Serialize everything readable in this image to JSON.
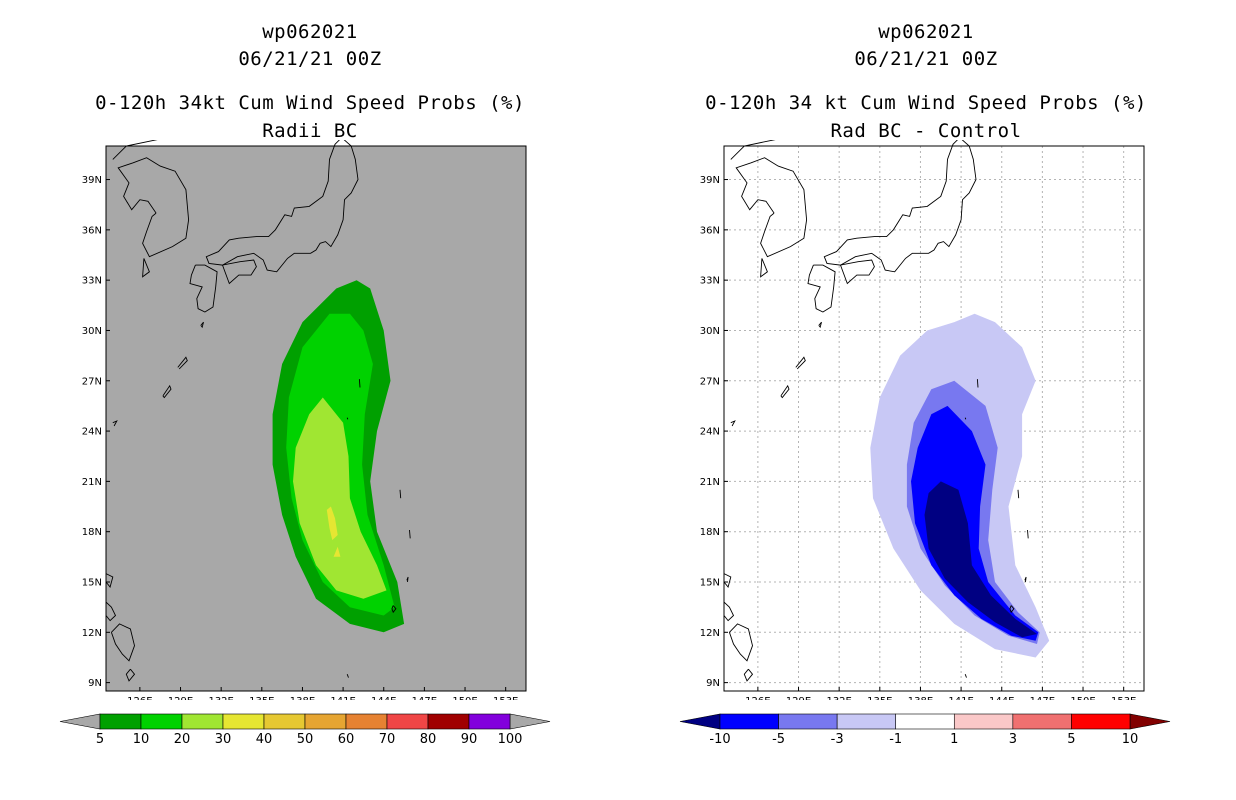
{
  "left": {
    "storm_id": "wp062021",
    "datetime": "06/21/21 00Z",
    "title": "0-120h 34kt Cum Wind Speed Probs (%)",
    "subtitle": "Radii BC",
    "background": "#a8a8a8",
    "colorbar": {
      "labels": [
        "5",
        "10",
        "20",
        "30",
        "40",
        "50",
        "60",
        "70",
        "80",
        "90",
        "100"
      ],
      "colors": [
        "#00a000",
        "#00d200",
        "#a0e632",
        "#e6e632",
        "#e6c832",
        "#e6a532",
        "#e68232",
        "#f04646",
        "#a00000",
        "#8200dc"
      ],
      "end_colors": [
        "#a8a8a8",
        "#a8a8a8"
      ]
    },
    "levels": [
      {
        "name": "5-10%",
        "color": "#00a000"
      },
      {
        "name": "10-20%",
        "color": "#00d200"
      },
      {
        "name": "20-30%",
        "color": "#a0e632"
      },
      {
        "name": "30-40%",
        "color": "#e6e632"
      }
    ]
  },
  "right": {
    "storm_id": "wp062021",
    "datetime": "06/21/21 00Z",
    "title": "0-120h 34 kt Cum Wind Speed Probs (%)",
    "subtitle": "Rad BC - Control",
    "background": "#ffffff",
    "colorbar": {
      "labels": [
        "-10",
        "-5",
        "-3",
        "-1",
        "1",
        "3",
        "5",
        "10"
      ],
      "colors": [
        "#0000ff",
        "#7878f0",
        "#c8c8f5",
        "#ffffff",
        "#fac8c8",
        "#f07070",
        "#ff0000"
      ],
      "end_colors": [
        "#000082",
        "#820000"
      ]
    },
    "levels": [
      {
        "name": "-1 to -3",
        "color": "#c8c8f5"
      },
      {
        "name": "-3 to -5",
        "color": "#7878f0"
      },
      {
        "name": "-5 to -10",
        "color": "#0000ff"
      },
      {
        "name": "below -10",
        "color": "#000082"
      }
    ]
  },
  "axes": {
    "lon_labels": [
      "126E",
      "129E",
      "132E",
      "135E",
      "138E",
      "141E",
      "144E",
      "147E",
      "150E",
      "153E"
    ],
    "lat_labels": [
      "9N",
      "12N",
      "15N",
      "18N",
      "21N",
      "24N",
      "27N",
      "30N",
      "33N",
      "36N",
      "39N"
    ],
    "lon_values": [
      126,
      129,
      132,
      135,
      138,
      141,
      144,
      147,
      150,
      153
    ],
    "lat_values": [
      9,
      12,
      15,
      18,
      21,
      24,
      27,
      30,
      33,
      36,
      39
    ],
    "lon_range": [
      123.5,
      154.5
    ],
    "lat_range": [
      8.5,
      41
    ]
  },
  "chart_data": [
    {
      "type": "map",
      "title": "0-120h 34kt Cum Wind Speed Probs (%)",
      "subtitle": "Radii BC",
      "regions": [
        {
          "level": "5-10%",
          "outline": [
            [
              142,
              33
            ],
            [
              140.5,
              32.5
            ],
            [
              138,
              30.5
            ],
            [
              136.5,
              28
            ],
            [
              135.8,
              25
            ],
            [
              135.8,
              22
            ],
            [
              136.5,
              19
            ],
            [
              137.5,
              16.5
            ],
            [
              139,
              14
            ],
            [
              141.5,
              12.5
            ],
            [
              144,
              12
            ],
            [
              145.5,
              12.5
            ],
            [
              145,
              15
            ],
            [
              143.5,
              18
            ],
            [
              143,
              21
            ],
            [
              143.5,
              24
            ],
            [
              144.5,
              27
            ],
            [
              144,
              30
            ],
            [
              143,
              32.5
            ]
          ]
        },
        {
          "level": "10-20%",
          "outline": [
            [
              140,
              31
            ],
            [
              138,
              29
            ],
            [
              137,
              26
            ],
            [
              136.8,
              23
            ],
            [
              137.2,
              20
            ],
            [
              138,
              17.5
            ],
            [
              139.5,
              15
            ],
            [
              141.5,
              13.5
            ],
            [
              144,
              13
            ],
            [
              144.8,
              13.5
            ],
            [
              144,
              16
            ],
            [
              142.8,
              19
            ],
            [
              142.4,
              22
            ],
            [
              142.6,
              25
            ],
            [
              143.2,
              28
            ],
            [
              142.5,
              30
            ],
            [
              141.5,
              31
            ]
          ]
        },
        {
          "level": "20-30%",
          "outline": [
            [
              139.5,
              26
            ],
            [
              138.5,
              25
            ],
            [
              137.5,
              23
            ],
            [
              137.3,
              21
            ],
            [
              137.8,
              18.5
            ],
            [
              139,
              16
            ],
            [
              140.5,
              14.5
            ],
            [
              142.5,
              14
            ],
            [
              144.2,
              14.5
            ],
            [
              143.5,
              16
            ],
            [
              142.3,
              18
            ],
            [
              141.5,
              20
            ],
            [
              141.4,
              22.5
            ],
            [
              141,
              24.5
            ]
          ]
        },
        {
          "level": "30-40%",
          "outline": [
            [
              139.8,
              19.3
            ],
            [
              140.1,
              19.5
            ],
            [
              140.4,
              18.8
            ],
            [
              140.6,
              17.8
            ],
            [
              140.2,
              17.5
            ],
            [
              140,
              18.2
            ]
          ]
        },
        {
          "level": "30-40%",
          "outline": [
            [
              140.3,
              16.5
            ],
            [
              140.6,
              17.1
            ],
            [
              140.8,
              16.5
            ]
          ]
        }
      ]
    },
    {
      "type": "map",
      "title": "0-120h 34 kt Cum Wind Speed Probs (%)",
      "subtitle": "Rad BC - Control",
      "regions": [
        {
          "level": "-1 to -3",
          "outline": [
            [
              140.5,
              30.5
            ],
            [
              138.5,
              30
            ],
            [
              136.5,
              28.5
            ],
            [
              135,
              26
            ],
            [
              134.3,
              23
            ],
            [
              134.5,
              20
            ],
            [
              136,
              17
            ],
            [
              138,
              14.5
            ],
            [
              140.5,
              12.5
            ],
            [
              143.5,
              11
            ],
            [
              146.5,
              10.5
            ],
            [
              147.5,
              11.5
            ],
            [
              146.5,
              13.5
            ],
            [
              145,
              16
            ],
            [
              144.5,
              19.5
            ],
            [
              145.5,
              22.5
            ],
            [
              145.5,
              25
            ],
            [
              146.5,
              27
            ],
            [
              145.5,
              29
            ],
            [
              143.5,
              30.5
            ],
            [
              142,
              31
            ]
          ]
        },
        {
          "level": "-3 to -5",
          "outline": [
            [
              140.5,
              27
            ],
            [
              138.8,
              26.5
            ],
            [
              137.5,
              24.5
            ],
            [
              137,
              22
            ],
            [
              137,
              19.5
            ],
            [
              138,
              17
            ],
            [
              139.8,
              14.8
            ],
            [
              142,
              13
            ],
            [
              144.5,
              11.8
            ],
            [
              146.6,
              11.3
            ],
            [
              146.8,
              12
            ],
            [
              145.2,
              13.2
            ],
            [
              143.5,
              15
            ],
            [
              143,
              17.5
            ],
            [
              143.3,
              20.5
            ],
            [
              143.7,
              23
            ],
            [
              142.8,
              25.5
            ]
          ]
        },
        {
          "level": "-5 to -10",
          "outline": [
            [
              140,
              25.5
            ],
            [
              138.8,
              25
            ],
            [
              137.8,
              23
            ],
            [
              137.3,
              21
            ],
            [
              137.6,
              18.5
            ],
            [
              138.8,
              16
            ],
            [
              140.5,
              14.2
            ],
            [
              142.5,
              12.8
            ],
            [
              144.7,
              11.8
            ],
            [
              146.5,
              11.5
            ],
            [
              146.7,
              12
            ],
            [
              145,
              13
            ],
            [
              143,
              15
            ],
            [
              142.3,
              17
            ],
            [
              142.4,
              19.5
            ],
            [
              142.8,
              22
            ],
            [
              141.8,
              24
            ]
          ]
        },
        {
          "level": "below -10",
          "outline": [
            [
              139.5,
              21
            ],
            [
              138.6,
              20.3
            ],
            [
              138.3,
              19
            ],
            [
              138.6,
              17
            ],
            [
              139.8,
              15.2
            ],
            [
              141.5,
              13.8
            ],
            [
              143.5,
              12.6
            ],
            [
              145.5,
              11.7
            ],
            [
              146.6,
              11.9
            ],
            [
              145,
              12.8
            ],
            [
              143.2,
              14.2
            ],
            [
              141.8,
              16
            ],
            [
              141.5,
              18.5
            ],
            [
              140.8,
              20.5
            ]
          ]
        }
      ]
    }
  ]
}
